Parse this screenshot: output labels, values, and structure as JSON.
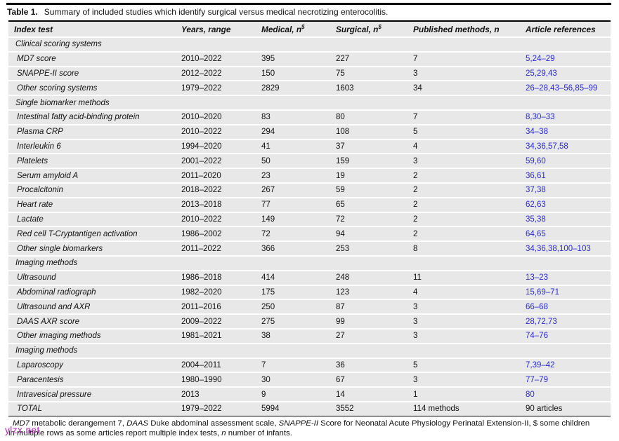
{
  "caption": {
    "label": "Table 1.",
    "text": "Summary of included studies which identify surgical versus medical necrotizing enterocolitis."
  },
  "table": {
    "header": {
      "cells": [
        {
          "label": "Index test",
          "sup": ""
        },
        {
          "label": "Years, range",
          "sup": ""
        },
        {
          "label": "Medical, n",
          "sup": "$"
        },
        {
          "label": "Surgical, n",
          "sup": "$"
        },
        {
          "label": "Published methods, n",
          "sup": ""
        },
        {
          "label": "Article references",
          "sup": ""
        }
      ]
    },
    "rows": [
      {
        "type": "section",
        "label": "Clinical scoring systems"
      },
      {
        "type": "data",
        "cells": [
          "MD7 score",
          "2010–2022",
          "395",
          "227",
          "7"
        ],
        "refs": "5,24–29",
        "refs_style": "blue"
      },
      {
        "type": "data",
        "cells": [
          "SNAPPE-II score",
          "2012–2022",
          "150",
          "75",
          "3"
        ],
        "refs": "25,29,43",
        "refs_style": "blue"
      },
      {
        "type": "data",
        "cells": [
          "Other scoring systems",
          "1979–2022",
          "2829",
          "1603",
          "34"
        ],
        "refs": "26–28,43–56,85–99",
        "refs_style": "blue"
      },
      {
        "type": "section",
        "label": "Single biomarker methods"
      },
      {
        "type": "data",
        "cells": [
          "Intestinal fatty acid-binding protein",
          "2010–2020",
          "83",
          "80",
          "7"
        ],
        "refs": "8,30–33",
        "refs_style": "blue"
      },
      {
        "type": "data",
        "cells": [
          "Plasma CRP",
          "2010–2022",
          "294",
          "108",
          "5"
        ],
        "refs": "34–38",
        "refs_style": "blue"
      },
      {
        "type": "data",
        "cells": [
          "Interleukin 6",
          "1994–2020",
          "41",
          "37",
          "4"
        ],
        "refs": "34,36,57,58",
        "refs_style": "blue"
      },
      {
        "type": "data",
        "cells": [
          "Platelets",
          "2001–2022",
          "50",
          "159",
          "3"
        ],
        "refs": "59,60",
        "refs_style": "blue"
      },
      {
        "type": "data",
        "cells": [
          "Serum amyloid A",
          "2011–2020",
          "23",
          "19",
          "2"
        ],
        "refs": "36,61",
        "refs_style": "blue"
      },
      {
        "type": "data",
        "cells": [
          "Procalcitonin",
          "2018–2022",
          "267",
          "59",
          "2"
        ],
        "refs": "37,38",
        "refs_style": "blue"
      },
      {
        "type": "data",
        "cells": [
          "Heart rate",
          "2013–2018",
          "77",
          "65",
          "2"
        ],
        "refs": "62,63",
        "refs_style": "blue"
      },
      {
        "type": "data",
        "cells": [
          "Lactate",
          "2010–2022",
          "149",
          "72",
          "2"
        ],
        "refs": "35,38",
        "refs_style": "blue"
      },
      {
        "type": "data",
        "cells": [
          "Red cell T-Cryptantigen activation",
          "1986–2002",
          "72",
          "94",
          "2"
        ],
        "refs": "64,65",
        "refs_style": "blue"
      },
      {
        "type": "data",
        "cells": [
          "Other single biomarkers",
          "2011–2022",
          "366",
          "253",
          "8"
        ],
        "refs": "34,36,38,100–103",
        "refs_style": "blue"
      },
      {
        "type": "section",
        "label": "Imaging methods"
      },
      {
        "type": "data",
        "cells": [
          "Ultrasound",
          "1986–2018",
          "414",
          "248",
          "11"
        ],
        "refs": "13–23",
        "refs_style": "blue"
      },
      {
        "type": "data",
        "cells": [
          "Abdominal radiograph",
          "1982–2020",
          "175",
          "123",
          "4"
        ],
        "refs": "15,69–71",
        "refs_style": "blue"
      },
      {
        "type": "data",
        "cells": [
          "Ultrasound and AXR",
          "2011–2016",
          "250",
          "87",
          "3"
        ],
        "refs": "66–68",
        "refs_style": "blue"
      },
      {
        "type": "data",
        "cells": [
          "DAAS AXR score",
          "2009–2022",
          "275",
          "99",
          "3"
        ],
        "refs": "28,72,73",
        "refs_style": "blue"
      },
      {
        "type": "data",
        "cells": [
          "Other imaging methods",
          "1981–2021",
          "38",
          "27",
          "3"
        ],
        "refs": "74–76",
        "refs_style": "blue"
      },
      {
        "type": "section",
        "label": "Imaging methods"
      },
      {
        "type": "data",
        "cells": [
          "Laparoscopy",
          "2004–2011",
          "7",
          "36",
          "5"
        ],
        "refs": "7,39–42",
        "refs_style": "blue"
      },
      {
        "type": "data",
        "cells": [
          "Paracentesis",
          "1980–1990",
          "30",
          "67",
          "3"
        ],
        "refs": "77–79",
        "refs_style": "blue"
      },
      {
        "type": "data",
        "cells": [
          "Intravesical pressure",
          "2013",
          "9",
          "14",
          "1"
        ],
        "refs": "80",
        "refs_style": "blue"
      },
      {
        "type": "total",
        "cells": [
          "TOTAL",
          "1979–2022",
          "5994",
          "3552",
          "114 methods"
        ],
        "refs": "90 articles",
        "refs_style": "black"
      }
    ]
  },
  "footnote": {
    "lines": [
      [
        {
          "t": "MD7",
          "i": true
        },
        {
          "t": " metabolic derangement 7, "
        },
        {
          "t": "DAAS",
          "i": true
        },
        {
          "t": " Duke abdominal assessment scale, "
        },
        {
          "t": "SNAPPE-II",
          "i": true
        },
        {
          "t": " Score for Neonatal Acute Physiology Perinatal Extension-II, $ some children"
        }
      ],
      [
        {
          "t": "in multiple rows as some articles report multiple index tests, "
        },
        {
          "t": "n",
          "i": true
        },
        {
          "t": " number of infants."
        }
      ]
    ]
  },
  "watermark": {
    "text": "ylzx.net"
  },
  "colors": {
    "ref_blue": "#2828dc",
    "stripe": "#e8e8e8",
    "watermark_magenta": "#bd2abd",
    "text": "#111111"
  }
}
